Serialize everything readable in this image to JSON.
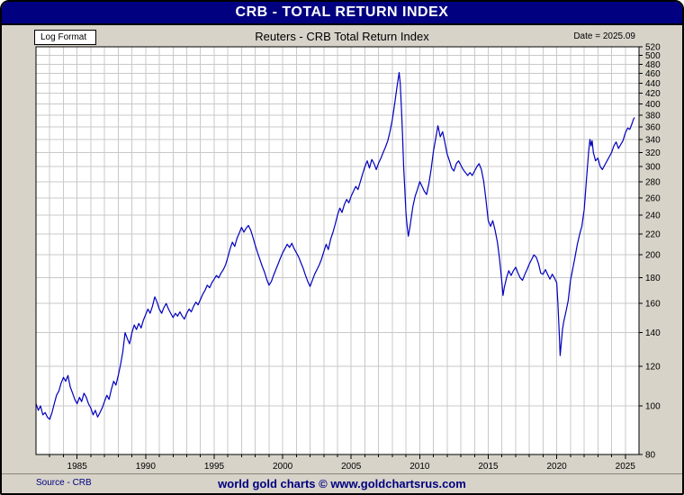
{
  "window": {
    "title": "CRB - TOTAL RETURN INDEX"
  },
  "header": {
    "format_label": "Log Format",
    "chart_title": "Reuters - CRB Total Return Index",
    "date_label": "Date = 2025.09"
  },
  "footer": {
    "source": "Source - CRB",
    "watermark": "world gold charts © www.goldchartsrus.com"
  },
  "colors": {
    "titlebar_bg": "#000080",
    "titlebar_text": "#ffffff",
    "panel_bg": "#d7d3c9",
    "plot_bg": "#ffffff",
    "grid": "#c9c9c9",
    "line": "#0000bf",
    "footer_text": "#000080"
  },
  "chart_data": {
    "type": "line",
    "title": "Reuters - CRB Total Return Index",
    "subtitle": "CRB - TOTAL RETURN INDEX",
    "scale_y": "log",
    "x_domain": [
      1982,
      2026
    ],
    "y_domain": [
      80,
      520
    ],
    "x_ticks": [
      1985,
      1990,
      1995,
      2000,
      2005,
      2010,
      2015,
      2020,
      2025
    ],
    "grid_year_step": 1,
    "y_ticks": [
      80,
      100,
      120,
      140,
      160,
      180,
      200,
      220,
      240,
      260,
      280,
      300,
      320,
      340,
      360,
      380,
      400,
      420,
      440,
      460,
      480,
      500,
      520
    ],
    "y_axis_side": "right",
    "grid": true,
    "legend": "none",
    "line_color": "#0000bf",
    "grid_color": "#c9c9c9",
    "series": [
      {
        "name": "CRB Total Return Index",
        "points": [
          [
            1982.0,
            101
          ],
          [
            1982.17,
            98
          ],
          [
            1982.33,
            100
          ],
          [
            1982.5,
            96
          ],
          [
            1982.67,
            97
          ],
          [
            1982.83,
            95
          ],
          [
            1983.0,
            94
          ],
          [
            1983.17,
            97
          ],
          [
            1983.33,
            101
          ],
          [
            1983.5,
            105
          ],
          [
            1983.67,
            107
          ],
          [
            1983.83,
            111
          ],
          [
            1984.0,
            114
          ],
          [
            1984.17,
            112
          ],
          [
            1984.33,
            115
          ],
          [
            1984.5,
            109
          ],
          [
            1984.67,
            106
          ],
          [
            1984.83,
            103
          ],
          [
            1985.0,
            101
          ],
          [
            1985.17,
            104
          ],
          [
            1985.33,
            102
          ],
          [
            1985.5,
            106
          ],
          [
            1985.67,
            104
          ],
          [
            1985.83,
            101
          ],
          [
            1986.0,
            99
          ],
          [
            1986.17,
            96
          ],
          [
            1986.33,
            98
          ],
          [
            1986.5,
            95
          ],
          [
            1986.67,
            97
          ],
          [
            1986.83,
            99
          ],
          [
            1987.0,
            102
          ],
          [
            1987.17,
            105
          ],
          [
            1987.33,
            103
          ],
          [
            1987.5,
            108
          ],
          [
            1987.67,
            112
          ],
          [
            1987.83,
            110
          ],
          [
            1988.0,
            115
          ],
          [
            1988.17,
            121
          ],
          [
            1988.33,
            128
          ],
          [
            1988.5,
            140
          ],
          [
            1988.67,
            136
          ],
          [
            1988.83,
            133
          ],
          [
            1989.0,
            140
          ],
          [
            1989.17,
            145
          ],
          [
            1989.33,
            142
          ],
          [
            1989.5,
            146
          ],
          [
            1989.67,
            143
          ],
          [
            1989.83,
            148
          ],
          [
            1990.0,
            152
          ],
          [
            1990.17,
            156
          ],
          [
            1990.33,
            153
          ],
          [
            1990.5,
            158
          ],
          [
            1990.67,
            165
          ],
          [
            1990.83,
            161
          ],
          [
            1991.0,
            156
          ],
          [
            1991.17,
            153
          ],
          [
            1991.33,
            157
          ],
          [
            1991.5,
            160
          ],
          [
            1991.67,
            156
          ],
          [
            1991.83,
            153
          ],
          [
            1992.0,
            150
          ],
          [
            1992.17,
            153
          ],
          [
            1992.33,
            151
          ],
          [
            1992.5,
            154
          ],
          [
            1992.67,
            151
          ],
          [
            1992.83,
            149
          ],
          [
            1993.0,
            153
          ],
          [
            1993.17,
            156
          ],
          [
            1993.33,
            154
          ],
          [
            1993.5,
            158
          ],
          [
            1993.67,
            161
          ],
          [
            1993.83,
            159
          ],
          [
            1994.0,
            163
          ],
          [
            1994.17,
            167
          ],
          [
            1994.33,
            170
          ],
          [
            1994.5,
            174
          ],
          [
            1994.67,
            172
          ],
          [
            1994.83,
            176
          ],
          [
            1995.0,
            179
          ],
          [
            1995.17,
            182
          ],
          [
            1995.33,
            180
          ],
          [
            1995.5,
            184
          ],
          [
            1995.67,
            187
          ],
          [
            1995.83,
            191
          ],
          [
            1996.0,
            198
          ],
          [
            1996.17,
            206
          ],
          [
            1996.33,
            212
          ],
          [
            1996.5,
            208
          ],
          [
            1996.67,
            216
          ],
          [
            1996.83,
            221
          ],
          [
            1997.0,
            227
          ],
          [
            1997.17,
            222
          ],
          [
            1997.33,
            226
          ],
          [
            1997.5,
            229
          ],
          [
            1997.67,
            224
          ],
          [
            1997.83,
            217
          ],
          [
            1998.0,
            209
          ],
          [
            1998.17,
            202
          ],
          [
            1998.33,
            196
          ],
          [
            1998.5,
            190
          ],
          [
            1998.67,
            185
          ],
          [
            1998.83,
            179
          ],
          [
            1999.0,
            174
          ],
          [
            1999.17,
            177
          ],
          [
            1999.33,
            182
          ],
          [
            1999.5,
            187
          ],
          [
            1999.67,
            192
          ],
          [
            1999.83,
            197
          ],
          [
            2000.0,
            202
          ],
          [
            2000.17,
            206
          ],
          [
            2000.33,
            210
          ],
          [
            2000.5,
            207
          ],
          [
            2000.67,
            211
          ],
          [
            2000.83,
            206
          ],
          [
            2001.0,
            202
          ],
          [
            2001.17,
            198
          ],
          [
            2001.33,
            193
          ],
          [
            2001.5,
            188
          ],
          [
            2001.67,
            182
          ],
          [
            2001.83,
            177
          ],
          [
            2002.0,
            173
          ],
          [
            2002.17,
            178
          ],
          [
            2002.33,
            183
          ],
          [
            2002.5,
            187
          ],
          [
            2002.67,
            191
          ],
          [
            2002.83,
            196
          ],
          [
            2003.0,
            203
          ],
          [
            2003.17,
            210
          ],
          [
            2003.33,
            205
          ],
          [
            2003.5,
            215
          ],
          [
            2003.67,
            222
          ],
          [
            2003.83,
            230
          ],
          [
            2004.0,
            240
          ],
          [
            2004.17,
            248
          ],
          [
            2004.33,
            243
          ],
          [
            2004.5,
            252
          ],
          [
            2004.67,
            258
          ],
          [
            2004.83,
            254
          ],
          [
            2005.0,
            262
          ],
          [
            2005.17,
            268
          ],
          [
            2005.33,
            274
          ],
          [
            2005.5,
            270
          ],
          [
            2005.67,
            280
          ],
          [
            2005.83,
            290
          ],
          [
            2006.0,
            300
          ],
          [
            2006.17,
            308
          ],
          [
            2006.33,
            298
          ],
          [
            2006.5,
            310
          ],
          [
            2006.67,
            304
          ],
          [
            2006.83,
            296
          ],
          [
            2007.0,
            305
          ],
          [
            2007.17,
            312
          ],
          [
            2007.33,
            320
          ],
          [
            2007.5,
            328
          ],
          [
            2007.67,
            338
          ],
          [
            2007.83,
            352
          ],
          [
            2008.0,
            372
          ],
          [
            2008.17,
            400
          ],
          [
            2008.33,
            430
          ],
          [
            2008.5,
            462
          ],
          [
            2008.58,
            440
          ],
          [
            2008.67,
            390
          ],
          [
            2008.75,
            345
          ],
          [
            2008.83,
            300
          ],
          [
            2008.92,
            268
          ],
          [
            2009.0,
            242
          ],
          [
            2009.08,
            228
          ],
          [
            2009.17,
            218
          ],
          [
            2009.25,
            224
          ],
          [
            2009.33,
            232
          ],
          [
            2009.5,
            250
          ],
          [
            2009.67,
            262
          ],
          [
            2009.83,
            270
          ],
          [
            2010.0,
            280
          ],
          [
            2010.17,
            274
          ],
          [
            2010.33,
            268
          ],
          [
            2010.5,
            264
          ],
          [
            2010.67,
            278
          ],
          [
            2010.83,
            296
          ],
          [
            2011.0,
            322
          ],
          [
            2011.17,
            342
          ],
          [
            2011.33,
            362
          ],
          [
            2011.42,
            352
          ],
          [
            2011.5,
            344
          ],
          [
            2011.67,
            352
          ],
          [
            2011.83,
            336
          ],
          [
            2012.0,
            318
          ],
          [
            2012.17,
            308
          ],
          [
            2012.33,
            298
          ],
          [
            2012.5,
            294
          ],
          [
            2012.67,
            304
          ],
          [
            2012.83,
            308
          ],
          [
            2013.0,
            302
          ],
          [
            2013.17,
            296
          ],
          [
            2013.33,
            292
          ],
          [
            2013.5,
            288
          ],
          [
            2013.67,
            292
          ],
          [
            2013.83,
            288
          ],
          [
            2014.0,
            294
          ],
          [
            2014.17,
            300
          ],
          [
            2014.33,
            304
          ],
          [
            2014.5,
            296
          ],
          [
            2014.67,
            280
          ],
          [
            2014.83,
            258
          ],
          [
            2015.0,
            234
          ],
          [
            2015.17,
            228
          ],
          [
            2015.33,
            234
          ],
          [
            2015.5,
            224
          ],
          [
            2015.67,
            212
          ],
          [
            2015.83,
            196
          ],
          [
            2016.0,
            176
          ],
          [
            2016.08,
            166
          ],
          [
            2016.17,
            172
          ],
          [
            2016.33,
            180
          ],
          [
            2016.5,
            186
          ],
          [
            2016.67,
            182
          ],
          [
            2016.83,
            186
          ],
          [
            2017.0,
            189
          ],
          [
            2017.17,
            184
          ],
          [
            2017.33,
            180
          ],
          [
            2017.5,
            178
          ],
          [
            2017.67,
            183
          ],
          [
            2017.83,
            187
          ],
          [
            2018.0,
            192
          ],
          [
            2018.17,
            196
          ],
          [
            2018.33,
            200
          ],
          [
            2018.5,
            198
          ],
          [
            2018.67,
            192
          ],
          [
            2018.83,
            184
          ],
          [
            2019.0,
            183
          ],
          [
            2019.17,
            187
          ],
          [
            2019.33,
            183
          ],
          [
            2019.5,
            179
          ],
          [
            2019.67,
            183
          ],
          [
            2019.83,
            180
          ],
          [
            2020.0,
            176
          ],
          [
            2020.08,
            160
          ],
          [
            2020.17,
            142
          ],
          [
            2020.25,
            126
          ],
          [
            2020.33,
            134
          ],
          [
            2020.42,
            142
          ],
          [
            2020.5,
            147
          ],
          [
            2020.67,
            154
          ],
          [
            2020.83,
            162
          ],
          [
            2021.0,
            178
          ],
          [
            2021.17,
            188
          ],
          [
            2021.33,
            198
          ],
          [
            2021.5,
            210
          ],
          [
            2021.67,
            220
          ],
          [
            2021.83,
            228
          ],
          [
            2022.0,
            246
          ],
          [
            2022.17,
            284
          ],
          [
            2022.33,
            322
          ],
          [
            2022.42,
            340
          ],
          [
            2022.5,
            330
          ],
          [
            2022.58,
            338
          ],
          [
            2022.67,
            320
          ],
          [
            2022.83,
            308
          ],
          [
            2023.0,
            312
          ],
          [
            2023.17,
            300
          ],
          [
            2023.33,
            296
          ],
          [
            2023.5,
            302
          ],
          [
            2023.67,
            308
          ],
          [
            2023.83,
            314
          ],
          [
            2024.0,
            320
          ],
          [
            2024.17,
            330
          ],
          [
            2024.33,
            336
          ],
          [
            2024.5,
            326
          ],
          [
            2024.67,
            332
          ],
          [
            2024.83,
            338
          ],
          [
            2025.0,
            350
          ],
          [
            2025.17,
            358
          ],
          [
            2025.33,
            356
          ],
          [
            2025.5,
            366
          ],
          [
            2025.58,
            372
          ],
          [
            2025.67,
            376
          ]
        ]
      }
    ]
  }
}
